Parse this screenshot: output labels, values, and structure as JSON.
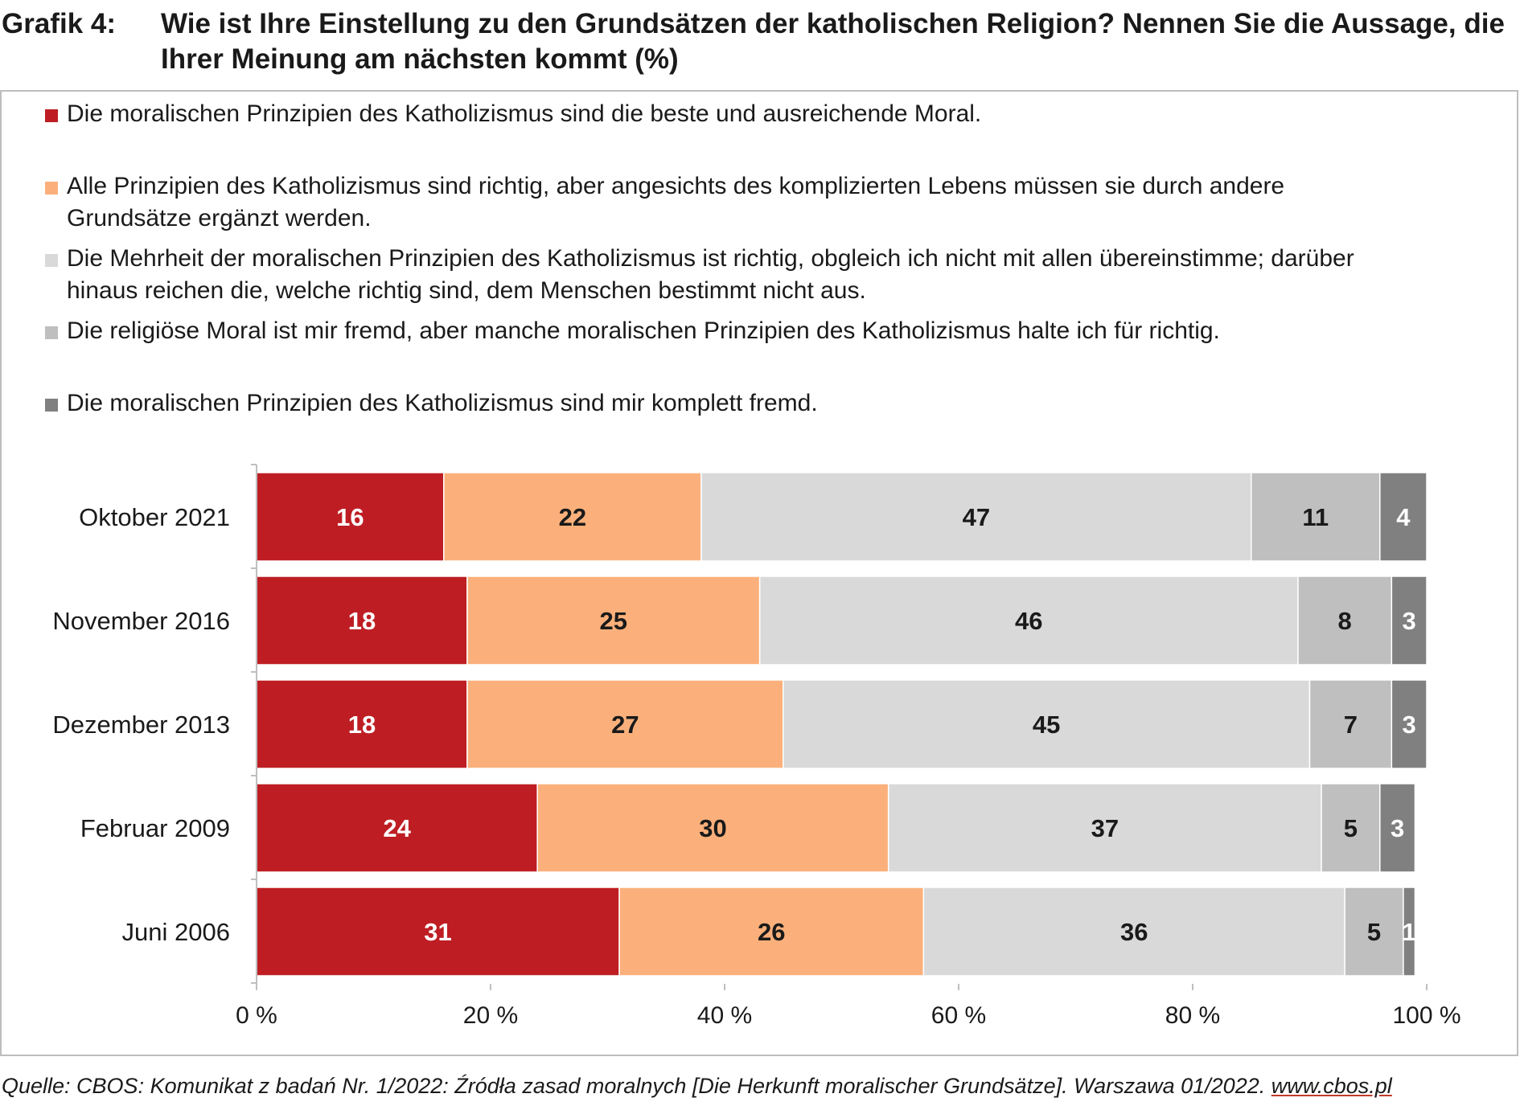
{
  "title": {
    "prefix": "Grafik 4:",
    "line1": "Wie ist Ihre Einstellung zu den Grundsätzen der katholischen Religion? Nennen Sie die Aussage, die",
    "line2": "Ihrer Meinung am nächsten kommt (%)"
  },
  "legend": [
    {
      "line1": "Die moralischen Prinzipien des Katholizismus sind die beste und ausreichende Moral.",
      "line2": "",
      "color": "#be1e23"
    },
    {
      "line1": "Alle Prinzipien des Katholizismus sind richtig, aber angesichts des komplizierten Lebens müssen sie durch andere",
      "line2": "Grundsätze ergänzt werden.",
      "color": "#fbb07b"
    },
    {
      "line1": "Die Mehrheit der moralischen Prinzipien des Katholizismus ist richtig, obgleich ich nicht mit allen übereinstimme; darüber",
      "line2": "hinaus reichen die, welche richtig sind, dem Menschen bestimmt nicht aus.",
      "color": "#d9d9d9"
    },
    {
      "line1": "Die religiöse Moral ist mir fremd, aber manche moralischen Prinzipien des Katholizismus halte ich für richtig.",
      "line2": "",
      "color": "#bfbfbf"
    },
    {
      "line1": "Die moralischen Prinzipien des Katholizismus sind mir komplett fremd.",
      "line2": "",
      "color": "#808080"
    }
  ],
  "chart_data": {
    "type": "bar",
    "orientation": "horizontal",
    "stacked": true,
    "categories": [
      "Oktober 2021",
      "November 2016",
      "Dezember 2013",
      "Februar 2009",
      "Juni 2006"
    ],
    "series": [
      {
        "values": [
          16,
          18,
          18,
          24,
          31
        ],
        "color": "#be1e23",
        "label_color": "#ffffff"
      },
      {
        "values": [
          22,
          25,
          27,
          30,
          26
        ],
        "color": "#fbb07b",
        "label_color": "#1a1a1a"
      },
      {
        "values": [
          47,
          46,
          45,
          37,
          36
        ],
        "color": "#d9d9d9",
        "label_color": "#1a1a1a"
      },
      {
        "values": [
          11,
          8,
          7,
          5,
          5
        ],
        "color": "#bfbfbf",
        "label_color": "#1a1a1a"
      },
      {
        "values": [
          4,
          3,
          3,
          3,
          1
        ],
        "color": "#808080",
        "label_color": "#ffffff"
      }
    ],
    "xlim": [
      0,
      100
    ],
    "xticks": [
      "0 %",
      "20 %",
      "40 %",
      "60 %",
      "80 %",
      "100 %"
    ],
    "grid": false,
    "legend_position": "top"
  },
  "source": {
    "text": "Quelle: CBOS: Komunikat z badań Nr. 1/2022: Źródła zasad moralnych [Die Herkunft moralischer Grundsätze]. Warszawa 01/2022. ",
    "link": "www.cbos.pl"
  }
}
